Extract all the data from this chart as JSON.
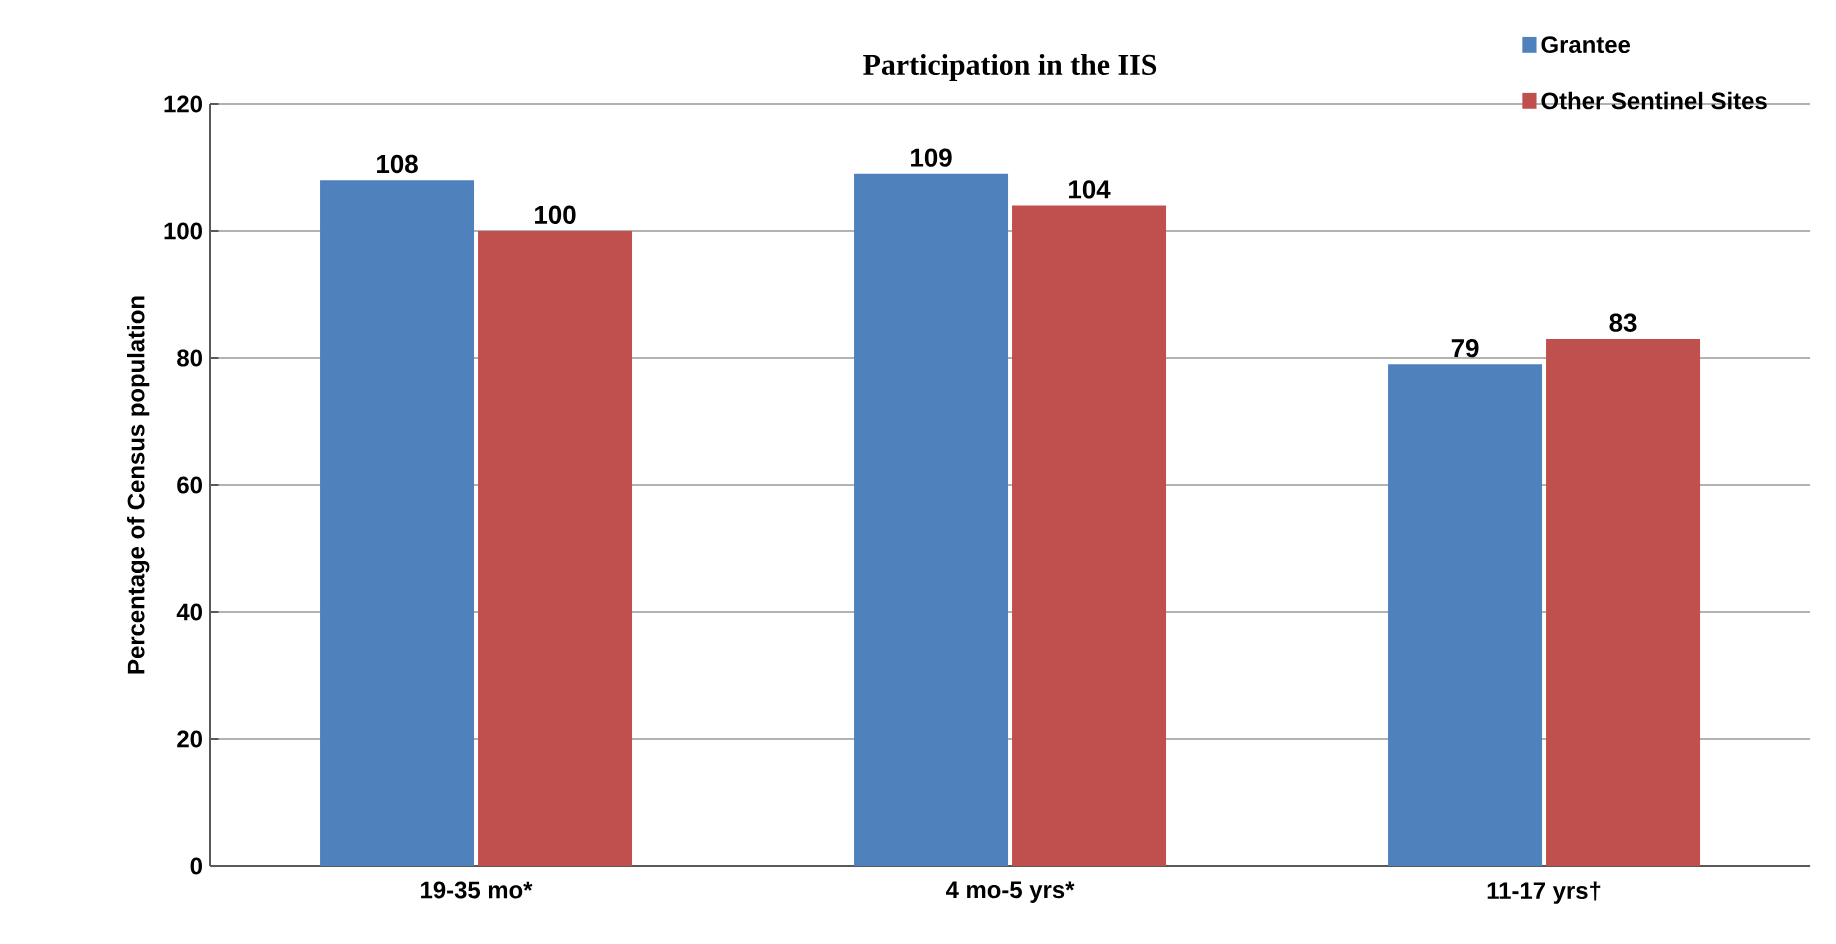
{
  "chart_data": {
    "type": "bar",
    "title": "Participation in the IIS",
    "ylabel": "Percentage of Census population",
    "categories": [
      "19-35 mo*",
      "4 mo-5 yrs*",
      "11-17 yrs†"
    ],
    "series": [
      {
        "name": "Grantee",
        "color": "#4f81bd",
        "values": [
          108,
          109,
          79
        ]
      },
      {
        "name": "Other Sentinel Sites",
        "color": "#c0504d",
        "values": [
          100,
          104,
          83
        ]
      }
    ],
    "ylim": [
      0,
      120
    ],
    "yticks": [
      0,
      20,
      40,
      60,
      80,
      100,
      120
    ],
    "grid": "y",
    "legend": "top right",
    "data_labels": true
  }
}
